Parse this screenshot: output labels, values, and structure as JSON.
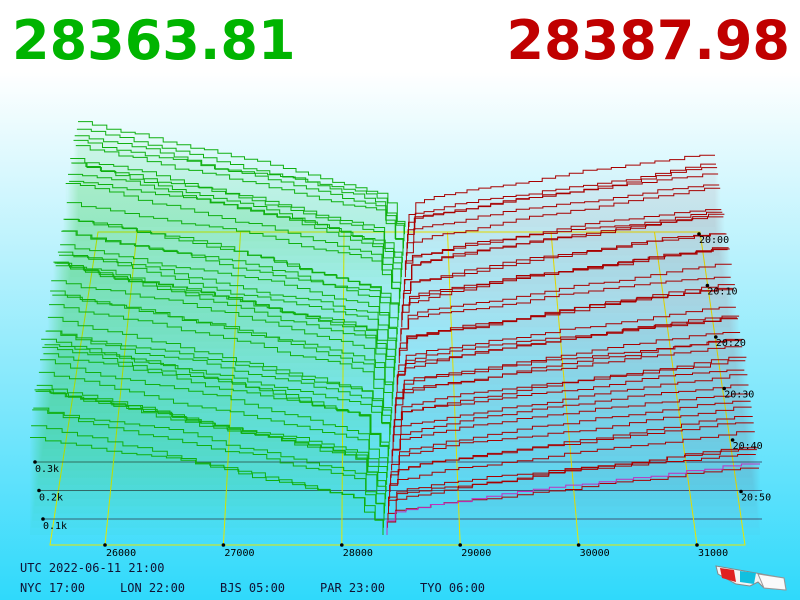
{
  "header": {
    "bid": "28363.81",
    "ask": "28387.98"
  },
  "price_axis": {
    "labels": [
      "26000",
      "27000",
      "28000",
      "29000",
      "30000",
      "31000"
    ]
  },
  "depth_axis": {
    "labels": [
      "0.3k",
      "0.2k",
      "0.1k"
    ]
  },
  "time_axis": {
    "labels": [
      "20:00",
      "20:10",
      "20:20",
      "20:30",
      "20:40",
      "20:50"
    ]
  },
  "clocks": {
    "utc": "UTC 2022-06-11 21:00",
    "zones": [
      "NYC 17:00",
      "LON 22:00",
      "BJS 05:00",
      "PAR 23:00",
      "TYO 06:00"
    ]
  }
}
